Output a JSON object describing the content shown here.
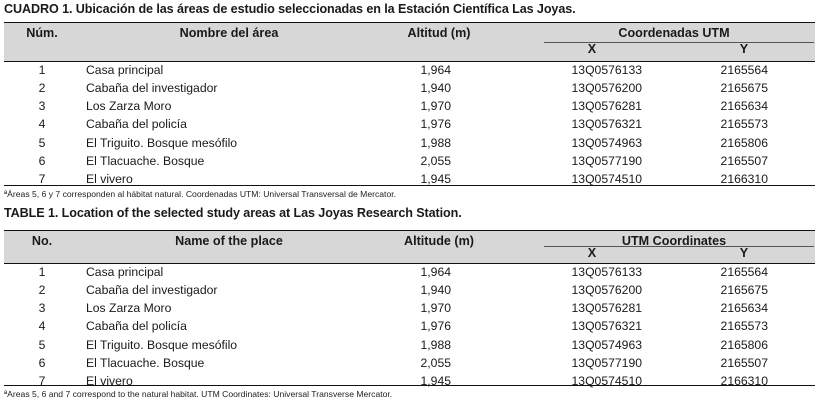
{
  "tables": [
    {
      "caption_lead": "CUADRO 1.",
      "caption_text": " Ubicación de las áreas de estudio seleccionadas en la Estación Científica Las Joyas.",
      "headers": {
        "num": "Núm.",
        "name": "Nombre del área",
        "altitude": "Altitud (m)",
        "utm": "Coordenadas UTM",
        "x": "X",
        "y": "Y"
      },
      "rows": [
        {
          "num": "1",
          "name": "Casa principal",
          "altitude": "1,964",
          "x": "13Q0576133",
          "y": "2165564"
        },
        {
          "num": "2",
          "name": "Cabaña del  investigador",
          "altitude": "1,940",
          "x": "13Q0576200",
          "y": "2165675"
        },
        {
          "num": "3",
          "name": "Los Zarza Moro",
          "altitude": "1,970",
          "x": "13Q0576281",
          "y": "2165634"
        },
        {
          "num": "4",
          "name": "Cabaña del policía",
          "altitude": "1,976",
          "x": "13Q0576321",
          "y": "2165573"
        },
        {
          "num": "5",
          "name": "El Triguito. Bosque mesófilo",
          "altitude": "1,988",
          "x": "13Q0574963",
          "y": "2165806"
        },
        {
          "num": "6",
          "name": "El Tlacuache. Bosque",
          "altitude": "2,055",
          "x": "13Q0577190",
          "y": "2165507"
        },
        {
          "num": "7",
          "name": "El vivero",
          "altitude": "1,945",
          "x": "13Q0574510",
          "y": "2166310"
        }
      ],
      "note": "ªÁreas 5, 6 y 7 corresponden al hábitat natural. Coordenadas UTM: Universal Transversal de Mercator."
    },
    {
      "caption_lead": "TABLE 1.",
      "caption_text": " Location of the selected study areas at Las Joyas Research Station.",
      "headers": {
        "num": "No.",
        "name": "Name of the place",
        "altitude": "Altitude (m)",
        "utm": "UTM Coordinates",
        "x": "X",
        "y": "Y"
      },
      "rows": [
        {
          "num": "1",
          "name": "Casa principal",
          "altitude": "1,964",
          "x": "13Q0576133",
          "y": "2165564"
        },
        {
          "num": "2",
          "name": "Cabaña del  investigador",
          "altitude": "1,940",
          "x": "13Q0576200",
          "y": "2165675"
        },
        {
          "num": "3",
          "name": "Los Zarza Moro",
          "altitude": "1,970",
          "x": "13Q0576281",
          "y": "2165634"
        },
        {
          "num": "4",
          "name": "Cabaña del policía",
          "altitude": "1,976",
          "x": "13Q0576321",
          "y": "2165573"
        },
        {
          "num": "5",
          "name": "El Triguito. Bosque mesófilo",
          "altitude": "1,988",
          "x": "13Q0574963",
          "y": "2165806"
        },
        {
          "num": "6",
          "name": "El Tlacuache. Bosque",
          "altitude": "2,055",
          "x": "13Q0577190",
          "y": "2165507"
        },
        {
          "num": "7",
          "name": "El vivero",
          "altitude": "1,945",
          "x": "13Q0574510",
          "y": "2166310"
        }
      ],
      "note": "ªAreas 5, 6 and 7 correspond to the natural habitat. UTM Coordinates: Universal Transverse Mercator."
    }
  ]
}
